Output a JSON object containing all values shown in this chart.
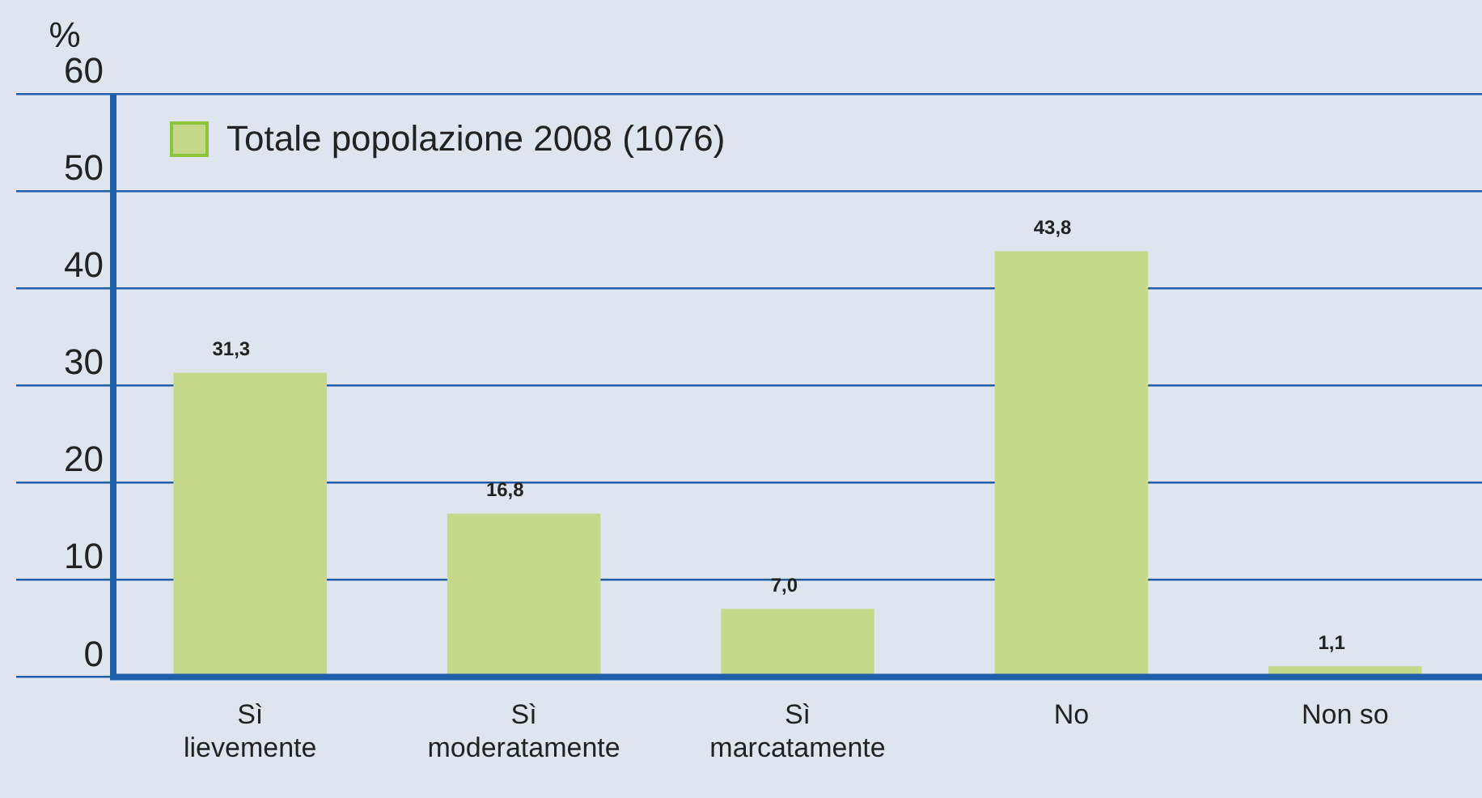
{
  "chart_data": {
    "type": "bar",
    "ylabel": "%",
    "categories": [
      "Sì\nlievemente",
      "Sì\nmoderatamente",
      "Sì\nmarcatamente",
      "No",
      "Non so"
    ],
    "series": [
      {
        "name": "Totale popolazione 2008 (1076)",
        "color": "#c5d98b",
        "values": [
          31.3,
          16.8,
          7.0,
          43.8,
          1.1
        ]
      }
    ],
    "value_labels": [
      "31,3",
      "16,8",
      "7,0",
      "43,8",
      "1,1"
    ],
    "ylim": [
      0,
      60
    ],
    "yticks": [
      0,
      10,
      20,
      30,
      40,
      50,
      60
    ],
    "grid": "y",
    "legend": "top left"
  }
}
